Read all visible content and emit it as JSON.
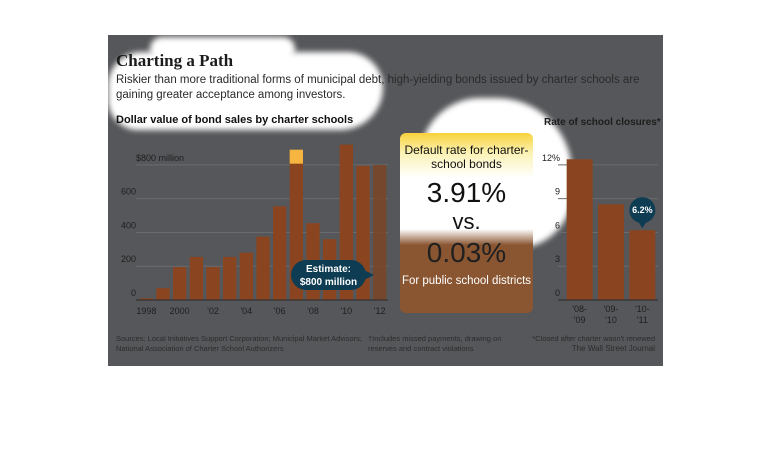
{
  "header": {
    "title": "Charting a Path",
    "subtitle": "Riskier than more traditional forms of municipal debt, high-yielding bonds issued by charter schools are gaining greater acceptance among investors."
  },
  "callout": {
    "label1": "Default rate for charter-school bonds",
    "value1": "3.91%",
    "vs": "vs.",
    "value2": "0.03%",
    "label2": "For public school districts"
  },
  "footer": {
    "sources": "Sources: Local Initiatives Support Corporation; Municipal Market Advisors; National Association of Charter School Authorizers",
    "footnote1": "†Includes missed payments, drawing on reserves and contract violations",
    "footnote2": "*Closed after charter wasn't renewed",
    "credit": "The Wall Street Journal"
  },
  "colors": {
    "bar": "#8a4520",
    "panel": "#56575a",
    "highlight_bar": "#f5b540",
    "badge": "#0e3c52"
  },
  "chart_data": [
    {
      "type": "bar",
      "title": "Dollar value of bond sales by charter schools",
      "x": [
        1998,
        1999,
        2000,
        2001,
        2002,
        2003,
        2004,
        2005,
        2006,
        2007,
        2008,
        2009,
        2010,
        2011,
        2012
      ],
      "x_tick_labels": [
        "1998",
        "2000",
        "'02",
        "'04",
        "'06",
        "'08",
        "'10",
        "'12"
      ],
      "x_tick_years": [
        1998,
        2000,
        2002,
        2004,
        2006,
        2008,
        2010,
        2012
      ],
      "values": [
        10,
        70,
        195,
        255,
        195,
        255,
        280,
        375,
        555,
        890,
        455,
        360,
        920,
        795,
        800
      ],
      "estimate_index": 14,
      "y_ticks": [
        0,
        200,
        400,
        600,
        800
      ],
      "y_tick_labels": [
        "0",
        "200",
        "400",
        "600",
        "$800 million"
      ],
      "ylim": [
        0,
        900
      ],
      "annotation": {
        "text": "Estimate: $800 million",
        "year": 2012
      }
    },
    {
      "type": "bar",
      "title": "Rate of school closures*",
      "categories": [
        "'08-'09",
        "'09-'10",
        "'10-'11"
      ],
      "category_lines": [
        [
          "'08-",
          "'09"
        ],
        [
          "'09-",
          "'10"
        ],
        [
          "'10-",
          "'11"
        ]
      ],
      "values": [
        12.5,
        8.5,
        6.2
      ],
      "y_ticks": [
        0,
        3,
        6,
        9,
        12
      ],
      "y_tick_labels": [
        "0",
        "3",
        "6",
        "9",
        "12%"
      ],
      "ylim": [
        0,
        13.5
      ],
      "annotation": {
        "text": "6.2%",
        "index": 2
      }
    }
  ]
}
